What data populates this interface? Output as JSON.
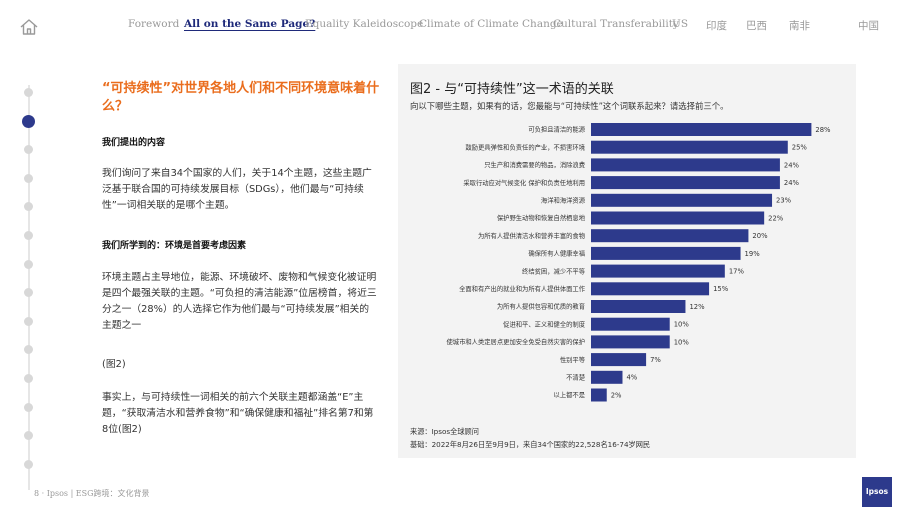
{
  "nav": {
    "items": [
      {
        "label": "Foreword",
        "active": false
      },
      {
        "label": "All on the Same Page?",
        "active": true
      },
      {
        "label": "Equality Kaleidoscope",
        "active": false
      },
      {
        "label": "Climate of Climate Change",
        "active": false
      },
      {
        "label": "Cultural Transferability",
        "active": false
      },
      {
        "label": "US",
        "active": false
      },
      {
        "label": "印度",
        "active": false
      },
      {
        "label": "巴西",
        "active": false
      },
      {
        "label": "南非",
        "active": false
      },
      {
        "label": "中国",
        "active": false
      }
    ],
    "home_icon": "home-icon"
  },
  "progress": {
    "count": 14,
    "active_index": 1
  },
  "content": {
    "heading": "“可持续性”对世界各地人们和不同环境意味着什么？",
    "section1_title": "我们提出的内容",
    "section1_text": "我们询问了来自34个国家的人们，关于14个主题，这些主题广泛基于联合国的可持续发展目标（SDGs），他们最与“可持续性”一词相关联的是哪个主题。",
    "section2_title": "我们所学到的：环境是首要考虑因素",
    "section2_text": "环境主题占主导地位，能源、环境破坏、废物和气候变化被证明是四个最强关联的主题。“可负担的清洁能源”位居榜首，将近三分之一（28%）的人选择它作为他们最与“可持续发展”相关的主题之一",
    "ref": "(图2)",
    "section3_text": "事实上，与可持续性一词相关的前六个关联主题都涵盖“E”主题，“获取清洁水和营养食物”和“确保健康和福祉”排名第7和第8位(图2)"
  },
  "figure": {
    "title": "图2 - 与“可持续性”这一术语的关联",
    "question": "向以下哪些主题，如果有的话，您最能与“可持续性”这个词联系起来？请选择前三个。",
    "source": "来源：Ipsos全球顾问",
    "base": "基础：2022年8月26日至9月9日，来自34个国家的22,528名16-74岁网民"
  },
  "chart_data": {
    "type": "bar",
    "orientation": "horizontal",
    "unit": "%",
    "bar_color": "#2d3a8c",
    "categories": [
      "可负担且清洁的能源",
      "鼓励更具弹性和负责任的产业，不损害环境",
      "只生产和消费需要的物品，消除浪费",
      "采取行动应对气候变化 保护和负责任地利用",
      "海洋和海洋资源",
      "保护野生动物和恢复自然栖息地",
      "为所有人提供清洁水和营养丰富的食物",
      "确保所有人健康幸福",
      "终结贫困，减少不平等",
      "全面和有产出的就业和为所有人提供体面工作",
      "为所有人提供包容和优质的教育",
      "促进和平、正义和健全的制度",
      "使城市和人类定居点更加安全免受自然灾害的保护",
      "性别平等",
      "不清楚",
      "以上都不是"
    ],
    "values": [
      28,
      25,
      24,
      24,
      23,
      22,
      20,
      19,
      17,
      15,
      12,
      10,
      10,
      7,
      4,
      2
    ],
    "xlim": [
      0,
      30
    ]
  },
  "footer": {
    "text": "8 · Ipsos | ESG跨境：文化背景"
  },
  "logo": {
    "text": "Ipsos"
  }
}
